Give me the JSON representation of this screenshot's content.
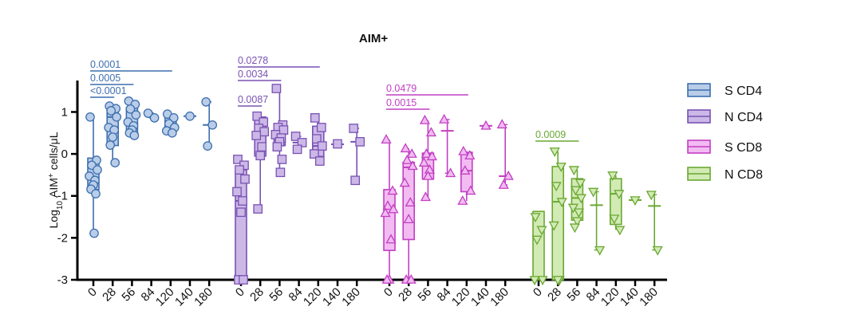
{
  "chart_data": {
    "type": "box",
    "title": "AIM+",
    "y_label": [
      "Log",
      "10",
      "AIM",
      "+",
      "cells/μL"
    ],
    "ylim": [
      -3,
      1.75
    ],
    "yticks": [
      -3,
      -2,
      -1,
      0,
      1
    ],
    "categories": [
      "0",
      "28",
      "56",
      "84",
      "120",
      "140",
      "180"
    ],
    "groups": [
      {
        "name": "S CD4",
        "color": "#3d6fae",
        "fill": "#b9cde9",
        "marker": "circle",
        "boxes": [
          {
            "min": -1.88,
            "q1": -0.85,
            "median": -0.6,
            "q3": -0.1,
            "max": 0.88,
            "points": [
              0.88,
              -0.15,
              -0.27,
              -0.38,
              -0.53,
              -0.63,
              -0.74,
              -0.84,
              -0.95,
              -1.89
            ]
          },
          {
            "min": -0.2,
            "q1": 0.2,
            "median": 0.88,
            "q3": 1.05,
            "max": 1.15,
            "points": [
              1.14,
              1.08,
              1.03,
              0.88,
              0.63,
              0.57,
              0.4,
              0.21,
              -0.21
            ]
          },
          {
            "min": 0.44,
            "q1": 0.48,
            "median": 0.67,
            "q3": 1.1,
            "max": 1.26,
            "points": [
              1.26,
              1.18,
              1.07,
              0.93,
              0.76,
              0.67,
              0.57,
              0.5,
              0.44
            ]
          },
          {
            "min": 0.86,
            "median": 0.92,
            "max": 0.98,
            "points": [
              0.97,
              0.86
            ]
          },
          {
            "min": 0.5,
            "q1": 0.52,
            "median": 0.72,
            "q3": 0.93,
            "max": 0.97,
            "points": [
              0.95,
              0.86,
              0.72,
              0.63,
              0.55,
              0.5
            ]
          },
          {
            "min": 0.9,
            "median": 0.9,
            "max": 0.9,
            "points": [
              0.9
            ]
          },
          {
            "min": 0.19,
            "median": 0.69,
            "max": 1.24,
            "points": [
              1.24,
              0.69,
              0.19
            ]
          }
        ],
        "comparisons": [
          {
            "between": [
              "0",
              "120"
            ],
            "label": "0.0001"
          },
          {
            "between": [
              "0",
              "56"
            ],
            "label": "0.0005"
          },
          {
            "between": [
              "0",
              "28"
            ],
            "label": "<0.0001"
          }
        ]
      },
      {
        "name": "N CD4",
        "color": "#7a52b3",
        "fill": "#cbb8e7",
        "marker": "square",
        "boxes": [
          {
            "min": -3,
            "q1": -3,
            "median": -1.12,
            "q3": -0.38,
            "max": -0.13,
            "points": [
              -0.13,
              -0.27,
              -0.38,
              -0.6,
              -0.9,
              -1.12,
              -1.39,
              -3,
              -3
            ]
          },
          {
            "min": -1.31,
            "q1": -0.05,
            "median": 0.6,
            "q3": 0.88,
            "max": 0.95,
            "points": [
              0.9,
              0.76,
              0.61,
              0.53,
              0.44,
              0.17,
              -0.04,
              -1.31
            ]
          },
          {
            "min": -0.44,
            "q1": 0.2,
            "median": 0.46,
            "q3": 0.7,
            "max": 1.56,
            "points": [
              1.56,
              0.69,
              0.63,
              0.57,
              0.46,
              0.38,
              0.29,
              0.17,
              -0.13,
              -0.44
            ]
          },
          {
            "min": 0.11,
            "median": 0.27,
            "max": 0.42,
            "points": [
              0.42,
              0.27,
              0.11
            ]
          },
          {
            "min": -0.17,
            "q1": -0.06,
            "median": 0.19,
            "q3": 0.66,
            "max": 0.86,
            "points": [
              0.86,
              0.63,
              0.36,
              0.19,
              0,
              -0.17
            ]
          },
          {
            "min": 0.23,
            "median": 0.23,
            "max": 0.23,
            "points": [
              0.24
            ]
          },
          {
            "min": -0.63,
            "median": 0.29,
            "max": 0.61,
            "points": [
              0.61,
              0.29,
              -0.63
            ]
          }
        ],
        "comparisons": [
          {
            "between": [
              "0",
              "120"
            ],
            "label": "0.0278"
          },
          {
            "between": [
              "0",
              "56"
            ],
            "label": "0.0034"
          },
          {
            "between": [
              "0",
              "28"
            ],
            "label": "0.0087"
          }
        ]
      },
      {
        "name": "S CD8",
        "color": "#c23fc2",
        "fill": "#f2bbf2",
        "marker": "triangle-up",
        "boxes": [
          {
            "min": -3,
            "q1": -2.3,
            "median": -1.3,
            "q3": -0.85,
            "max": 0.34,
            "points": [
              0.34,
              -0.88,
              -1.24,
              -1.32,
              -1.41,
              -2.04,
              -3,
              -3
            ]
          },
          {
            "min": -3,
            "q1": -2.04,
            "median": -0.32,
            "q3": -0.2,
            "max": 0.13,
            "points": [
              0.13,
              0,
              -0.15,
              -0.29,
              -0.69,
              -1.16,
              -1.56,
              -3,
              -3
            ]
          },
          {
            "min": -1.03,
            "q1": -0.6,
            "median": 0,
            "q3": 0.02,
            "max": 0.8,
            "points": [
              0.8,
              0.51,
              0,
              -0.06,
              -0.21,
              -0.38,
              -0.53,
              -1.03
            ]
          },
          {
            "min": -0.46,
            "median": 0.55,
            "max": 0.82,
            "points": [
              0.82,
              -0.46
            ]
          },
          {
            "min": -1.12,
            "q1": -0.9,
            "median": -0.4,
            "q3": 0.04,
            "max": 0.06,
            "points": [
              0.06,
              -0.04,
              -0.4,
              -0.88,
              -1.12
            ]
          },
          {
            "min": 0.67,
            "median": 0.67,
            "max": 0.67,
            "points": [
              0.67
            ]
          },
          {
            "min": -0.74,
            "median": -0.53,
            "max": 0.7,
            "points": [
              0.7,
              -0.53,
              -0.74
            ]
          }
        ],
        "comparisons": [
          {
            "between": [
              "0",
              "120"
            ],
            "label": "0.0479"
          },
          {
            "between": [
              "0",
              "56"
            ],
            "label": "0.0015"
          }
        ]
      },
      {
        "name": "N CD8",
        "color": "#6aa832",
        "fill": "#d2eab4",
        "marker": "triangle-down",
        "boxes": [
          {
            "min": -3,
            "q1": -3,
            "median": -3,
            "q3": -1.37,
            "max": -1.37,
            "points": [
              -1.5,
              -1.81,
              -2.04,
              -3,
              -3
            ]
          },
          {
            "min": -3,
            "q1": -3,
            "median": -1.14,
            "q3": -0.3,
            "max": 0.06,
            "points": [
              0.06,
              -0.3,
              -0.76,
              -1.14,
              -1.7,
              -3,
              -3
            ]
          },
          {
            "min": -1.75,
            "q1": -1.58,
            "median": -1.05,
            "q3": -0.59,
            "max": -0.38,
            "points": [
              -0.38,
              -0.69,
              -0.86,
              -1.05,
              -1.28,
              -1.39,
              -1.6,
              -1.75
            ]
          },
          {
            "min": -2.29,
            "median": -1.22,
            "max": -0.9,
            "points": [
              -0.9,
              -2.29
            ]
          },
          {
            "min": -1.81,
            "q1": -1.68,
            "median": -0.95,
            "q3": -0.59,
            "max": -0.51,
            "points": [
              -0.51,
              -0.95,
              -1.54,
              -1.81
            ]
          },
          {
            "min": -1.1,
            "median": -1.1,
            "max": -1.1,
            "points": [
              -1.1
            ]
          },
          {
            "min": -2.29,
            "median": -1.24,
            "max": -0.97,
            "points": [
              -0.97,
              -2.29
            ]
          }
        ],
        "comparisons": [
          {
            "between": [
              "0",
              "56"
            ],
            "label": "0.0009"
          }
        ]
      }
    ]
  }
}
